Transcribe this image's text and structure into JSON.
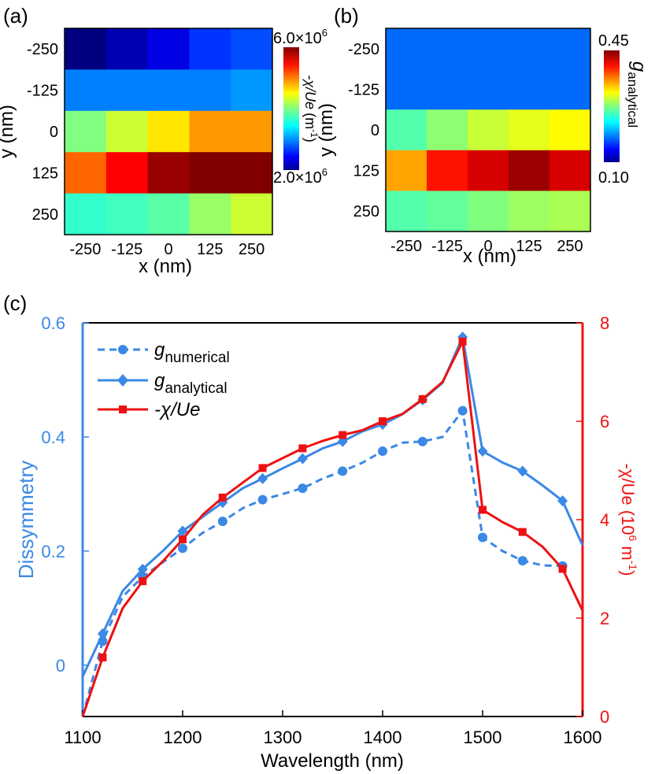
{
  "panel_labels": {
    "a": "(a)",
    "b": "(b)",
    "c": "(c)"
  },
  "chart_data": [
    {
      "id": "a",
      "type": "heatmap",
      "title": "",
      "xlabel": "x (nm)",
      "ylabel": "y (nm)",
      "x_ticks": [
        "-250",
        "-125",
        "0",
        "125",
        "250"
      ],
      "y_ticks": [
        "-250",
        "-125",
        "0",
        "125",
        "250"
      ],
      "colorbar": {
        "label_main": "-χ/Ue",
        "label_unit": "(m",
        "label_exp": "-1",
        "label_close": ")",
        "max_label": "6.0×10",
        "max_exp": "6",
        "min_label": "2.0×10",
        "min_exp": "6",
        "vmin": 2.0,
        "vmax": 6.0,
        "scale_note": "×10^6 m^-1"
      },
      "values": [
        [
          2.0,
          2.2,
          2.4,
          2.7,
          2.8
        ],
        [
          3.0,
          3.0,
          3.0,
          3.0,
          3.1
        ],
        [
          4.0,
          4.3,
          4.6,
          4.9,
          4.9
        ],
        [
          5.1,
          5.5,
          5.9,
          6.0,
          6.0
        ],
        [
          3.7,
          3.75,
          3.85,
          4.1,
          4.3
        ]
      ]
    },
    {
      "id": "b",
      "type": "heatmap",
      "title": "",
      "xlabel": "x (nm)",
      "ylabel": "y (nm)",
      "x_ticks": [
        "-250",
        "-125",
        "0",
        "125",
        "250"
      ],
      "y_ticks": [
        "-250",
        "-125",
        "0",
        "125",
        "250"
      ],
      "colorbar": {
        "label_main": "g",
        "label_sub": "analytical",
        "max_label": "0.45",
        "min_label": "0.10",
        "vmin": 0.1,
        "vmax": 0.45
      },
      "values": [
        [
          0.18,
          0.18,
          0.18,
          0.18,
          0.18
        ],
        [
          0.18,
          0.18,
          0.18,
          0.18,
          0.18
        ],
        [
          0.26,
          0.28,
          0.3,
          0.31,
          0.32
        ],
        [
          0.35,
          0.4,
          0.42,
          0.44,
          0.42
        ],
        [
          0.26,
          0.265,
          0.275,
          0.285,
          0.29
        ]
      ]
    },
    {
      "id": "c",
      "type": "line",
      "title": "",
      "xlabel": "Wavelength (nm)",
      "ylabel": "Dissymmetry",
      "y2label_main": "-χ/Ue (10",
      "y2label_exp": "6",
      "y2label_mid": " m",
      "y2label_exp2": "-1",
      "y2label_close": ")",
      "xlim": [
        1100,
        1600
      ],
      "ylim": [
        -0.09,
        0.6
      ],
      "y2lim": [
        0,
        8
      ],
      "x_ticks": [
        1100,
        1200,
        1300,
        1400,
        1500,
        1600
      ],
      "y_ticks": [
        0,
        0.2,
        0.4,
        0.6
      ],
      "y_tick_labels": [
        "0",
        "0.2",
        "0.4",
        "0.6"
      ],
      "y2_ticks": [
        0,
        2,
        4,
        6,
        8
      ],
      "y2_tick_labels": [
        "0",
        "2",
        "4",
        "6",
        "8"
      ],
      "legend": [
        {
          "main": "g",
          "sub": "numerical"
        },
        {
          "main": "g",
          "sub": "analytical"
        },
        {
          "main": "-χ/Ue",
          "sub": ""
        }
      ],
      "series": [
        {
          "name": "g numerical",
          "axis": "left",
          "color": "#3b88e6",
          "dash": true,
          "marker": "circle",
          "x": [
            1100,
            1120,
            1140,
            1160,
            1180,
            1200,
            1220,
            1240,
            1260,
            1280,
            1300,
            1320,
            1340,
            1360,
            1380,
            1400,
            1420,
            1440,
            1460,
            1480,
            1500,
            1520,
            1540,
            1560,
            1580
          ],
          "y": [
            -0.09,
            0.042,
            0.12,
            0.155,
            0.18,
            0.205,
            0.232,
            0.252,
            0.275,
            0.29,
            0.3,
            0.31,
            0.327,
            0.34,
            0.355,
            0.375,
            0.39,
            0.392,
            0.4,
            0.446,
            0.224,
            0.2,
            0.183,
            0.175,
            0.174
          ],
          "marker_x": [
            1120,
            1160,
            1200,
            1240,
            1280,
            1320,
            1360,
            1400,
            1440,
            1480,
            1500,
            1540,
            1580
          ]
        },
        {
          "name": "g analytical",
          "axis": "left",
          "color": "#3b88e6",
          "dash": false,
          "marker": "diamond",
          "x": [
            1100,
            1120,
            1140,
            1160,
            1180,
            1200,
            1220,
            1240,
            1260,
            1280,
            1300,
            1320,
            1340,
            1360,
            1380,
            1400,
            1420,
            1440,
            1460,
            1480,
            1500,
            1520,
            1540,
            1560,
            1580,
            1600
          ],
          "y": [
            -0.02,
            0.055,
            0.13,
            0.168,
            0.2,
            0.235,
            0.26,
            0.285,
            0.31,
            0.327,
            0.345,
            0.362,
            0.38,
            0.392,
            0.41,
            0.422,
            0.44,
            0.465,
            0.495,
            0.575,
            0.375,
            0.355,
            0.34,
            0.315,
            0.288,
            0.21
          ],
          "marker_x": [
            1120,
            1160,
            1200,
            1240,
            1280,
            1320,
            1360,
            1400,
            1440,
            1480,
            1500,
            1540,
            1580
          ]
        },
        {
          "name": "-χ/Ue",
          "axis": "right",
          "color": "#ee1111",
          "dash": false,
          "marker": "square",
          "x": [
            1100,
            1120,
            1140,
            1160,
            1180,
            1200,
            1220,
            1240,
            1260,
            1280,
            1300,
            1320,
            1340,
            1360,
            1380,
            1400,
            1420,
            1440,
            1460,
            1480,
            1500,
            1520,
            1540,
            1560,
            1580,
            1600
          ],
          "y": [
            0.0,
            1.2,
            2.2,
            2.75,
            3.15,
            3.6,
            4.1,
            4.45,
            4.75,
            5.05,
            5.25,
            5.45,
            5.6,
            5.72,
            5.82,
            6.0,
            6.15,
            6.45,
            6.8,
            7.62,
            4.2,
            3.95,
            3.75,
            3.45,
            3.0,
            2.15
          ],
          "marker_x": [
            1120,
            1160,
            1200,
            1240,
            1280,
            1320,
            1360,
            1400,
            1440,
            1480,
            1500,
            1540,
            1580
          ]
        }
      ]
    }
  ]
}
